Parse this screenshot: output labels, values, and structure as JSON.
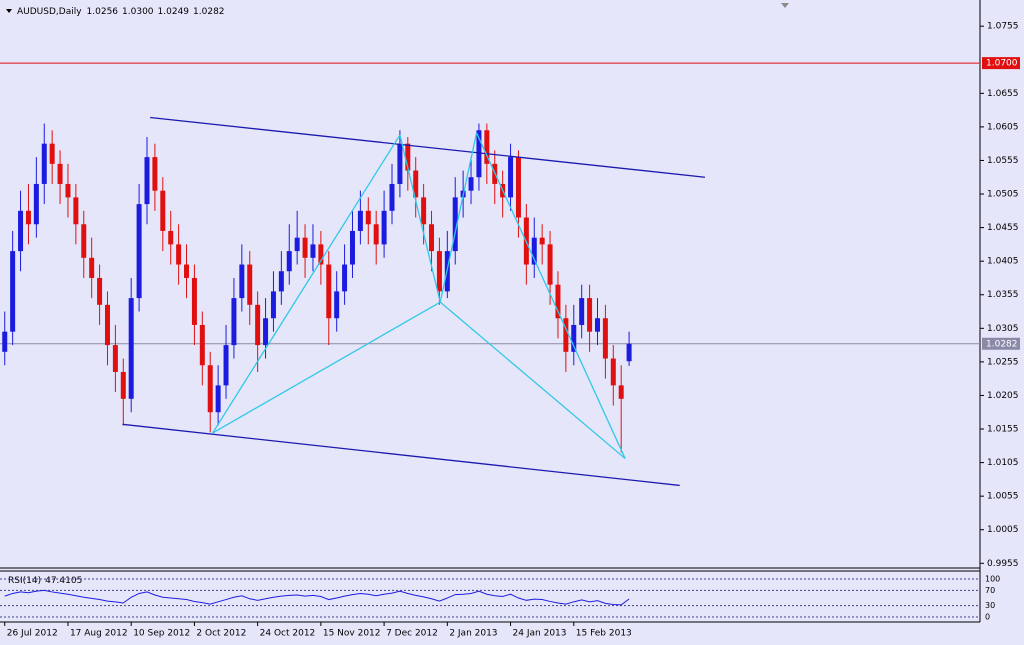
{
  "chart_data": {
    "type": "candlestick",
    "title": "AUDUSD,Daily",
    "header_values": [
      "1.0256",
      "1.0300",
      "1.0249",
      "1.0282"
    ],
    "up_color": "#1c1ce0",
    "down_color": "#e01010",
    "categories": [
      "26 Jul 2012",
      null,
      null,
      null,
      null,
      null,
      null,
      null,
      "17 Aug 2012",
      null,
      null,
      null,
      null,
      null,
      null,
      null,
      "10 Sep 2012",
      null,
      null,
      null,
      null,
      null,
      null,
      null,
      "2 Oct 2012",
      null,
      null,
      null,
      null,
      null,
      null,
      null,
      "24 Oct 2012",
      null,
      null,
      null,
      null,
      null,
      null,
      null,
      "15 Nov 2012",
      null,
      null,
      null,
      null,
      null,
      null,
      null,
      "7 Dec 2012",
      null,
      null,
      null,
      null,
      null,
      null,
      null,
      "2 Jan 2013",
      null,
      null,
      null,
      null,
      null,
      null,
      null,
      "24 Jan 2013",
      null,
      null,
      null,
      null,
      null,
      null,
      null,
      "15 Feb 2013",
      null,
      null,
      null,
      null,
      null,
      null,
      null
    ],
    "ohlc": [
      [
        1.027,
        1.033,
        1.025,
        1.03
      ],
      [
        1.03,
        1.045,
        1.028,
        1.042
      ],
      [
        1.042,
        1.051,
        1.039,
        1.048
      ],
      [
        1.048,
        1.052,
        1.043,
        1.046
      ],
      [
        1.046,
        1.056,
        1.044,
        1.052
      ],
      [
        1.052,
        1.061,
        1.049,
        1.058
      ],
      [
        1.058,
        1.06,
        1.052,
        1.055
      ],
      [
        1.055,
        1.057,
        1.049,
        1.052
      ],
      [
        1.052,
        1.055,
        1.047,
        1.05
      ],
      [
        1.05,
        1.052,
        1.043,
        1.046
      ],
      [
        1.046,
        1.048,
        1.038,
        1.041
      ],
      [
        1.041,
        1.044,
        1.035,
        1.038
      ],
      [
        1.038,
        1.04,
        1.031,
        1.034
      ],
      [
        1.034,
        1.036,
        1.025,
        1.028
      ],
      [
        1.028,
        1.031,
        1.021,
        1.024
      ],
      [
        1.024,
        1.026,
        1.016,
        1.02
      ],
      [
        1.02,
        1.038,
        1.018,
        1.035
      ],
      [
        1.035,
        1.052,
        1.033,
        1.049
      ],
      [
        1.049,
        1.059,
        1.046,
        1.056
      ],
      [
        1.056,
        1.058,
        1.048,
        1.051
      ],
      [
        1.051,
        1.053,
        1.042,
        1.045
      ],
      [
        1.045,
        1.048,
        1.04,
        1.043
      ],
      [
        1.043,
        1.046,
        1.037,
        1.04
      ],
      [
        1.04,
        1.043,
        1.035,
        1.038
      ],
      [
        1.038,
        1.04,
        1.028,
        1.031
      ],
      [
        1.031,
        1.033,
        1.022,
        1.025
      ],
      [
        1.025,
        1.027,
        1.015,
        1.018
      ],
      [
        1.018,
        1.025,
        1.016,
        1.022
      ],
      [
        1.022,
        1.031,
        1.02,
        1.028
      ],
      [
        1.028,
        1.038,
        1.026,
        1.035
      ],
      [
        1.035,
        1.043,
        1.033,
        1.04
      ],
      [
        1.04,
        1.042,
        1.031,
        1.034
      ],
      [
        1.034,
        1.036,
        1.024,
        1.028
      ],
      [
        1.028,
        1.035,
        1.026,
        1.032
      ],
      [
        1.032,
        1.039,
        1.03,
        1.036
      ],
      [
        1.036,
        1.042,
        1.034,
        1.039
      ],
      [
        1.039,
        1.046,
        1.037,
        1.042
      ],
      [
        1.042,
        1.048,
        1.04,
        1.044
      ],
      [
        1.044,
        1.046,
        1.038,
        1.041
      ],
      [
        1.041,
        1.046,
        1.039,
        1.043
      ],
      [
        1.043,
        1.045,
        1.037,
        1.04
      ],
      [
        1.04,
        1.042,
        1.028,
        1.032
      ],
      [
        1.032,
        1.039,
        1.03,
        1.036
      ],
      [
        1.036,
        1.043,
        1.034,
        1.04
      ],
      [
        1.04,
        1.048,
        1.038,
        1.045
      ],
      [
        1.045,
        1.051,
        1.043,
        1.048
      ],
      [
        1.048,
        1.05,
        1.043,
        1.046
      ],
      [
        1.046,
        1.048,
        1.04,
        1.043
      ],
      [
        1.043,
        1.051,
        1.041,
        1.048
      ],
      [
        1.048,
        1.055,
        1.046,
        1.052
      ],
      [
        1.052,
        1.06,
        1.05,
        1.058
      ],
      [
        1.058,
        1.059,
        1.051,
        1.054
      ],
      [
        1.054,
        1.056,
        1.047,
        1.05
      ],
      [
        1.05,
        1.052,
        1.043,
        1.046
      ],
      [
        1.046,
        1.048,
        1.039,
        1.042
      ],
      [
        1.042,
        1.044,
        1.034,
        1.036
      ],
      [
        1.036,
        1.045,
        1.035,
        1.042
      ],
      [
        1.042,
        1.053,
        1.04,
        1.05
      ],
      [
        1.05,
        1.054,
        1.047,
        1.051
      ],
      [
        1.051,
        1.056,
        1.049,
        1.053
      ],
      [
        1.053,
        1.061,
        1.051,
        1.06
      ],
      [
        1.06,
        1.061,
        1.052,
        1.055
      ],
      [
        1.055,
        1.057,
        1.049,
        1.052
      ],
      [
        1.052,
        1.054,
        1.047,
        1.05
      ],
      [
        1.05,
        1.058,
        1.048,
        1.056
      ],
      [
        1.056,
        1.057,
        1.044,
        1.047
      ],
      [
        1.047,
        1.049,
        1.037,
        1.04
      ],
      [
        1.04,
        1.047,
        1.038,
        1.044
      ],
      [
        1.044,
        1.046,
        1.04,
        1.043
      ],
      [
        1.043,
        1.045,
        1.034,
        1.037
      ],
      [
        1.037,
        1.039,
        1.029,
        1.032
      ],
      [
        1.032,
        1.034,
        1.024,
        1.027
      ],
      [
        1.027,
        1.034,
        1.025,
        1.031
      ],
      [
        1.031,
        1.037,
        1.029,
        1.035
      ],
      [
        1.035,
        1.037,
        1.027,
        1.03
      ],
      [
        1.03,
        1.035,
        1.028,
        1.032
      ],
      [
        1.032,
        1.034,
        1.023,
        1.026
      ],
      [
        1.026,
        1.028,
        1.019,
        1.022
      ],
      [
        1.022,
        1.025,
        1.012,
        1.02
      ],
      [
        1.0256,
        1.03,
        1.0249,
        1.0282
      ]
    ],
    "xlim": [
      -0.6,
      123.4
    ],
    "ylim": [
      0.9948,
      1.0794
    ],
    "yticks": [
      0.9955,
      1.0005,
      1.0055,
      1.0105,
      1.0155,
      1.0205,
      1.0255,
      1.0305,
      1.0355,
      1.0405,
      1.0455,
      1.0505,
      1.0555,
      1.0605,
      1.0655,
      1.0755
    ],
    "hlines": [
      {
        "value": 1.07,
        "label": "1.0700",
        "color": "#e01010"
      },
      {
        "value": 1.0282,
        "color": "#8a8aa8"
      }
    ],
    "lines": [
      {
        "color": "#1a1ab0",
        "points": [
          [
            18.4,
            1.0619
          ],
          [
            88.6,
            1.053
          ]
        ]
      },
      {
        "color": "#1a1ab0",
        "points": [
          [
            14.9,
            1.0162
          ],
          [
            85.4,
            1.0071
          ]
        ]
      },
      {
        "color": "#30c8e8",
        "points": [
          [
            26.3,
            1.0149
          ],
          [
            50.0,
            1.0593
          ]
        ]
      },
      {
        "color": "#30c8e8",
        "points": [
          [
            50.0,
            1.0593
          ],
          [
            55.1,
            1.0344
          ]
        ]
      },
      {
        "color": "#30c8e8",
        "points": [
          [
            55.1,
            1.0344
          ],
          [
            59.7,
            1.0596
          ]
        ]
      },
      {
        "color": "#30c8e8",
        "points": [
          [
            59.7,
            1.0596
          ],
          [
            78.5,
            1.0111
          ]
        ]
      },
      {
        "color": "#30c8e8",
        "points": [
          [
            26.3,
            1.0149
          ],
          [
            55.1,
            1.0344
          ]
        ]
      },
      {
        "color": "#30c8e8",
        "points": [
          [
            55.1,
            1.0344
          ],
          [
            78.5,
            1.0111
          ]
        ]
      }
    ],
    "indicator": {
      "name": "RSI(14)",
      "color": "#1c1ce0",
      "values": [
        55,
        62,
        66,
        64,
        68,
        70,
        66,
        63,
        60,
        56,
        52,
        49,
        46,
        42,
        40,
        37,
        52,
        62,
        66,
        58,
        52,
        50,
        48,
        46,
        41,
        38,
        34,
        40,
        46,
        52,
        56,
        48,
        44,
        48,
        52,
        55,
        57,
        58,
        55,
        57,
        54,
        46,
        50,
        55,
        59,
        62,
        60,
        56,
        60,
        63,
        68,
        62,
        57,
        53,
        48,
        42,
        50,
        59,
        60,
        62,
        68,
        60,
        56,
        54,
        60,
        50,
        44,
        47,
        46,
        41,
        37,
        34,
        40,
        45,
        40,
        43,
        36,
        33,
        32,
        47.4105
      ],
      "ylim": [
        -13,
        121
      ],
      "yticks": [
        0,
        30,
        70,
        100
      ]
    }
  }
}
